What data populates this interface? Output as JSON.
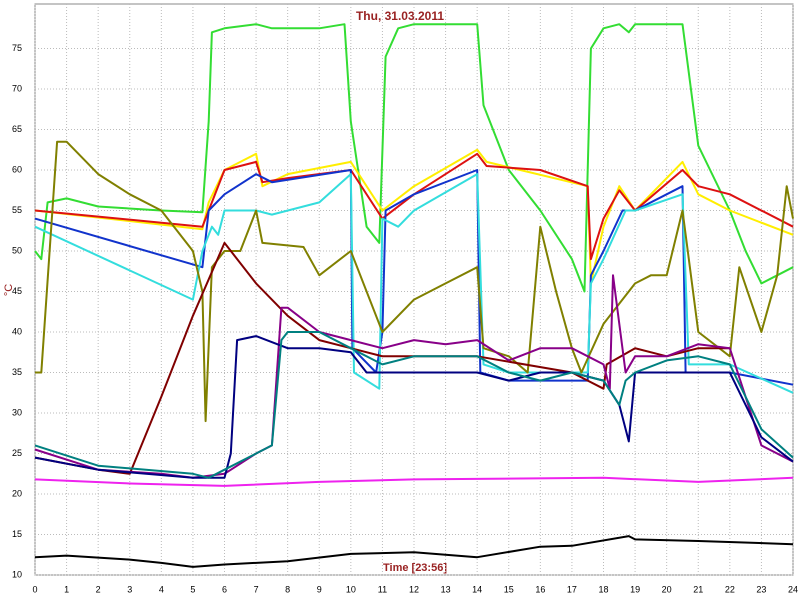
{
  "chart_data": {
    "type": "line",
    "title": "Thu, 31.03.2011",
    "xlabel": "Time [23:56]",
    "ylabel": "°C",
    "xlim": [
      0,
      24
    ],
    "ylim": [
      10,
      80.5
    ],
    "xticks": [
      0,
      1,
      2,
      3,
      4,
      5,
      6,
      7,
      8,
      9,
      10,
      11,
      12,
      13,
      14,
      15,
      16,
      17,
      18,
      19,
      20,
      21,
      22,
      23,
      24
    ],
    "yticks": [
      10,
      15,
      20,
      25,
      30,
      35,
      40,
      45,
      50,
      55,
      60,
      65,
      70,
      75
    ],
    "grid": true,
    "series": [
      {
        "color": "#33dd33",
        "x": [
          0,
          0.2,
          0.4,
          1,
          2,
          4,
          5.3,
          5.5,
          5.6,
          6,
          7,
          7.5,
          9,
          9.8,
          10,
          10.5,
          10.9,
          11.1,
          11.5,
          12,
          14,
          14.2,
          15,
          16,
          17,
          17.4,
          17.6,
          18,
          18.5,
          18.8,
          19,
          20.5,
          21,
          22,
          22.5,
          23,
          23.5,
          24
        ],
        "values": [
          50,
          49,
          56,
          56.5,
          55.5,
          55,
          54.8,
          66,
          77,
          77.5,
          78,
          77.5,
          77.5,
          78,
          66,
          53,
          51,
          74,
          77.5,
          78,
          78,
          68,
          60,
          55,
          49,
          45,
          75,
          77.5,
          78,
          77,
          78,
          78,
          63,
          55,
          50,
          46,
          47,
          48
        ]
      },
      {
        "color": "#ffee00",
        "x": [
          0,
          5.3,
          5.5,
          6,
          7,
          7.2,
          8,
          10,
          11,
          12,
          14,
          14.3,
          17.5,
          17.6,
          18,
          18.5,
          19,
          20.5,
          21,
          22,
          24
        ],
        "values": [
          55,
          52.7,
          56,
          60,
          62,
          58,
          59.5,
          61,
          55,
          58,
          62.5,
          61,
          58,
          46,
          53,
          58,
          55,
          61,
          57,
          55,
          52
        ]
      },
      {
        "color": "#dd1111",
        "x": [
          0,
          5.3,
          5.5,
          6,
          7,
          7.2,
          8,
          10,
          11,
          12,
          14,
          14.3,
          16,
          17.5,
          17.6,
          18,
          18.5,
          19,
          20.5,
          21,
          22,
          24
        ],
        "values": [
          55,
          53,
          55,
          60,
          61,
          58.5,
          59,
          60,
          54,
          57,
          62,
          60.5,
          60,
          58,
          49,
          54,
          57.5,
          55,
          60,
          58,
          57,
          53
        ]
      },
      {
        "color": "#1133cc",
        "x": [
          0,
          5.3,
          5.5,
          6,
          7,
          7.5,
          10,
          10.05,
          10.8,
          11,
          11.1,
          12,
          14,
          14.1,
          15,
          17.5,
          17.6,
          18,
          18.6,
          19,
          20.5,
          20.6,
          22,
          24
        ],
        "values": [
          54,
          48,
          55,
          57,
          59.5,
          58.5,
          60,
          38,
          35,
          40,
          55,
          57,
          60,
          35,
          34,
          34,
          47,
          50,
          55,
          55,
          58,
          35,
          35,
          33.5
        ]
      },
      {
        "color": "#33dddd",
        "x": [
          0,
          5,
          5.3,
          5.6,
          5.8,
          6,
          7,
          7.5,
          9,
          10,
          10.1,
          10.9,
          11,
          11.5,
          12,
          14,
          14.2,
          15,
          17.5,
          17.6,
          18,
          18.7,
          19,
          20.5,
          20.7,
          22,
          24
        ],
        "values": [
          53,
          44,
          50,
          53,
          52,
          55,
          55,
          54.5,
          56,
          59.5,
          35,
          33,
          54,
          53,
          55,
          59.5,
          36,
          35,
          35,
          46,
          49,
          55,
          55,
          57,
          36,
          36,
          32.5
        ]
      },
      {
        "color": "#808000",
        "x": [
          0,
          0.2,
          0.7,
          1,
          2,
          3,
          4,
          5,
          5.3,
          5.4,
          5.6,
          6,
          6.5,
          7,
          7.2,
          8.5,
          9,
          10,
          11,
          12,
          13,
          14,
          14.2,
          15,
          15.6,
          16,
          16.5,
          17,
          17.3,
          18,
          19,
          19.5,
          20,
          20.5,
          21,
          22,
          22.3,
          23,
          23.5,
          23.8,
          24
        ],
        "values": [
          35,
          35,
          63.5,
          63.5,
          59.5,
          57,
          55,
          50,
          45,
          29,
          48,
          50,
          50,
          55,
          51,
          50.5,
          47,
          50,
          40,
          44,
          46,
          48,
          38,
          37,
          35,
          53,
          45,
          38,
          35,
          41,
          46,
          47,
          47,
          55,
          40,
          37,
          48,
          40,
          47,
          58,
          54
        ]
      },
      {
        "color": "#800000",
        "x": [
          0,
          2,
          3,
          4,
          5,
          6,
          7,
          8,
          9,
          10,
          11,
          14,
          17,
          18,
          18.1,
          19,
          20,
          21,
          22
        ],
        "values": [
          24.5,
          23,
          22.5,
          32,
          42,
          51,
          46,
          42,
          39,
          38,
          37,
          37,
          35,
          33,
          36,
          38,
          37,
          38,
          38
        ]
      },
      {
        "color": "#880088",
        "x": [
          0,
          2,
          4,
          5,
          6,
          7,
          7.5,
          7.8,
          8,
          9,
          10,
          11,
          12,
          13,
          14,
          15,
          16,
          17,
          18,
          18.2,
          18.3,
          18.7,
          19,
          20,
          21,
          22,
          23,
          24
        ],
        "values": [
          25.5,
          23,
          22.5,
          22,
          22.5,
          25,
          26,
          43,
          43,
          40,
          39,
          38,
          39,
          38.5,
          39,
          36.5,
          38,
          38,
          36,
          33,
          47,
          35,
          37,
          37,
          38.5,
          38,
          26,
          24
        ]
      },
      {
        "color": "#000080",
        "x": [
          0,
          2,
          5,
          6,
          6.2,
          6.4,
          7,
          8,
          9,
          10,
          10.5,
          12,
          14,
          15,
          16,
          17,
          18,
          18.5,
          18.8,
          19,
          20,
          22,
          22.5,
          23,
          24
        ],
        "values": [
          24.5,
          23,
          22,
          22,
          25,
          39,
          39.5,
          38,
          38,
          37.5,
          35,
          35,
          35,
          34,
          35,
          35,
          34,
          31,
          26.5,
          35,
          35,
          35,
          31,
          27,
          24
        ]
      },
      {
        "color": "#008080",
        "x": [
          0,
          2,
          5,
          5.5,
          6,
          7,
          7.5,
          7.8,
          8,
          9,
          10,
          11,
          12,
          14,
          15,
          16,
          17,
          18,
          18.5,
          18.7,
          19,
          20,
          21,
          22,
          23,
          24
        ],
        "values": [
          26,
          23.5,
          22.5,
          22,
          23,
          25,
          26,
          39,
          40,
          40,
          38,
          36,
          37,
          37,
          35,
          34,
          35,
          34,
          31,
          34,
          35,
          36.5,
          37,
          36,
          28,
          24.5
        ]
      },
      {
        "color": "#ee22ee",
        "x": [
          0,
          3,
          6,
          9,
          12,
          18,
          21,
          24
        ],
        "values": [
          21.8,
          21.3,
          21,
          21.5,
          21.8,
          22,
          21.5,
          22
        ]
      },
      {
        "color": "#000000",
        "x": [
          0,
          1,
          3,
          4,
          5,
          6,
          8,
          10,
          12,
          14,
          16,
          17,
          18.8,
          19,
          21,
          24
        ],
        "values": [
          12.2,
          12.4,
          11.9,
          11.5,
          11,
          11.3,
          11.7,
          12.6,
          12.8,
          12.2,
          13.5,
          13.6,
          14.8,
          14.4,
          14.2,
          13.8
        ]
      }
    ]
  }
}
